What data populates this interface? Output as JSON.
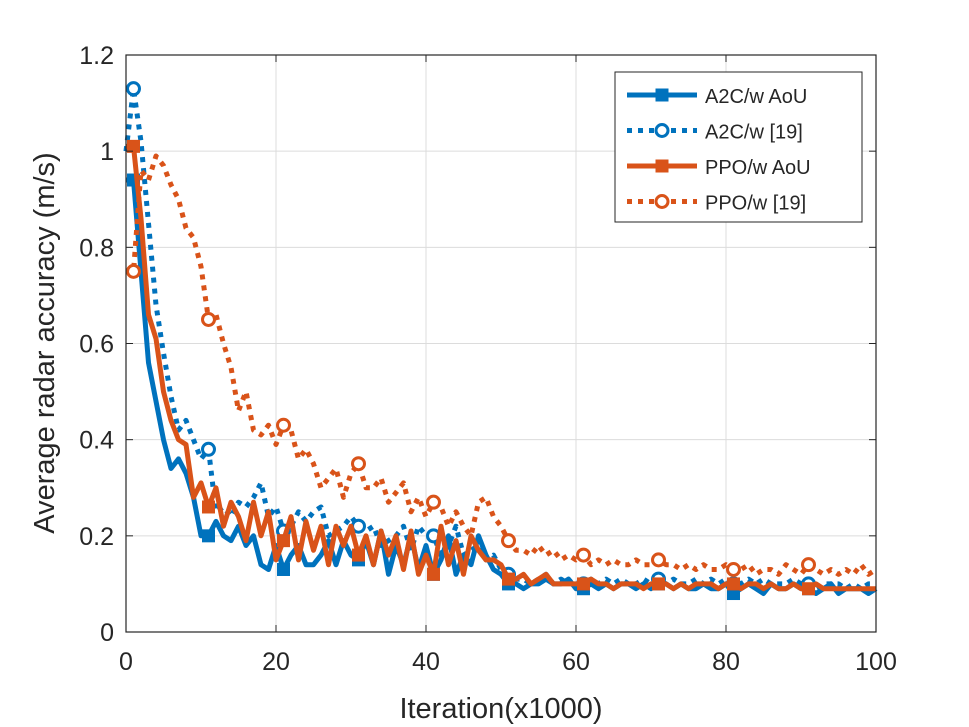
{
  "chart_data": {
    "type": "line",
    "title": "",
    "xlabel": "Iteration(x1000)",
    "ylabel": "Average radar accuracy (m/s)",
    "xlim": [
      0,
      100
    ],
    "ylim": [
      0,
      1.2
    ],
    "xticks": [
      0,
      20,
      40,
      60,
      80,
      100
    ],
    "xtick_labels": [
      "0",
      "20",
      "40",
      "60",
      "80",
      "100"
    ],
    "yticks": [
      0,
      0.2,
      0.4,
      0.6,
      0.8,
      1.0,
      1.2
    ],
    "ytick_labels": [
      "0",
      "0.2",
      "0.4",
      "0.6",
      "0.8",
      "1",
      "1.2"
    ],
    "grid": true,
    "legend_position": "top-right",
    "series": [
      {
        "name": "A2C/w AoU",
        "color": "#0072BD",
        "line_style": "solid",
        "marker": "square",
        "marker_every": 10,
        "x": [
          0,
          1,
          2,
          3,
          4,
          5,
          6,
          7,
          8,
          9,
          10,
          11,
          12,
          13,
          14,
          15,
          16,
          17,
          18,
          19,
          20,
          21,
          22,
          23,
          24,
          25,
          26,
          27,
          28,
          29,
          30,
          31,
          32,
          33,
          34,
          35,
          36,
          37,
          38,
          39,
          40,
          41,
          42,
          43,
          44,
          45,
          46,
          47,
          48,
          49,
          50,
          51,
          52,
          53,
          54,
          55,
          56,
          57,
          58,
          59,
          60,
          61,
          62,
          63,
          64,
          65,
          66,
          67,
          68,
          69,
          70,
          71,
          72,
          73,
          74,
          75,
          76,
          77,
          78,
          79,
          80,
          81,
          82,
          83,
          84,
          85,
          86,
          87,
          88,
          89,
          90,
          91,
          92,
          93,
          94,
          95,
          96,
          97,
          98,
          99,
          100
        ],
        "y": [
          0.94,
          0.94,
          0.75,
          0.56,
          0.48,
          0.4,
          0.34,
          0.36,
          0.33,
          0.28,
          0.2,
          0.2,
          0.23,
          0.2,
          0.19,
          0.22,
          0.18,
          0.2,
          0.14,
          0.13,
          0.18,
          0.13,
          0.16,
          0.18,
          0.14,
          0.14,
          0.16,
          0.19,
          0.14,
          0.19,
          0.16,
          0.15,
          0.19,
          0.14,
          0.21,
          0.12,
          0.18,
          0.14,
          0.2,
          0.13,
          0.18,
          0.12,
          0.15,
          0.2,
          0.12,
          0.16,
          0.14,
          0.2,
          0.16,
          0.13,
          0.12,
          0.1,
          0.1,
          0.09,
          0.1,
          0.1,
          0.11,
          0.1,
          0.1,
          0.11,
          0.09,
          0.09,
          0.1,
          0.09,
          0.1,
          0.09,
          0.1,
          0.1,
          0.09,
          0.1,
          0.09,
          0.1,
          0.1,
          0.09,
          0.1,
          0.09,
          0.09,
          0.1,
          0.09,
          0.09,
          0.1,
          0.08,
          0.09,
          0.1,
          0.09,
          0.08,
          0.1,
          0.09,
          0.09,
          0.1,
          0.09,
          0.09,
          0.08,
          0.09,
          0.1,
          0.08,
          0.09,
          0.09,
          0.09,
          0.08,
          0.09
        ]
      },
      {
        "name": "A2C/w [19]",
        "color": "#0072BD",
        "line_style": "dotted",
        "marker": "circle",
        "marker_every": 10,
        "x": [
          0,
          1,
          2,
          3,
          4,
          5,
          6,
          7,
          8,
          9,
          10,
          11,
          12,
          13,
          14,
          15,
          16,
          17,
          18,
          19,
          20,
          21,
          22,
          23,
          24,
          25,
          26,
          27,
          28,
          29,
          30,
          31,
          32,
          33,
          34,
          35,
          36,
          37,
          38,
          39,
          40,
          41,
          42,
          43,
          44,
          45,
          46,
          47,
          48,
          49,
          50,
          51,
          52,
          53,
          54,
          55,
          56,
          57,
          58,
          59,
          60,
          61,
          62,
          63,
          64,
          65,
          66,
          67,
          68,
          69,
          70,
          71,
          72,
          73,
          74,
          75,
          76,
          77,
          78,
          79,
          80,
          81,
          82,
          83,
          84,
          85,
          86,
          87,
          88,
          89,
          90,
          91,
          92,
          93,
          94,
          95,
          96,
          97,
          98,
          99,
          100
        ],
        "y": [
          1.0,
          1.13,
          1.02,
          0.85,
          0.68,
          0.58,
          0.49,
          0.42,
          0.44,
          0.4,
          0.36,
          0.38,
          0.25,
          0.26,
          0.24,
          0.27,
          0.26,
          0.28,
          0.31,
          0.24,
          0.26,
          0.21,
          0.22,
          0.25,
          0.23,
          0.25,
          0.26,
          0.2,
          0.21,
          0.22,
          0.24,
          0.22,
          0.21,
          0.22,
          0.18,
          0.19,
          0.2,
          0.22,
          0.17,
          0.22,
          0.2,
          0.2,
          0.16,
          0.18,
          0.22,
          0.16,
          0.17,
          0.18,
          0.15,
          0.16,
          0.13,
          0.12,
          0.11,
          0.11,
          0.1,
          0.11,
          0.12,
          0.1,
          0.11,
          0.1,
          0.11,
          0.1,
          0.11,
          0.1,
          0.11,
          0.1,
          0.11,
          0.1,
          0.1,
          0.11,
          0.1,
          0.11,
          0.1,
          0.11,
          0.1,
          0.1,
          0.11,
          0.1,
          0.11,
          0.1,
          0.11,
          0.1,
          0.1,
          0.11,
          0.1,
          0.11,
          0.1,
          0.1,
          0.1,
          0.11,
          0.1,
          0.1,
          0.09,
          0.1,
          0.1,
          0.1,
          0.09,
          0.1,
          0.09,
          0.1,
          0.1
        ]
      },
      {
        "name": "PPO/w AoU",
        "color": "#D95319",
        "line_style": "solid",
        "marker": "square",
        "marker_every": 10,
        "x": [
          0,
          1,
          2,
          3,
          4,
          5,
          6,
          7,
          8,
          9,
          10,
          11,
          12,
          13,
          14,
          15,
          16,
          17,
          18,
          19,
          20,
          21,
          22,
          23,
          24,
          25,
          26,
          27,
          28,
          29,
          30,
          31,
          32,
          33,
          34,
          35,
          36,
          37,
          38,
          39,
          40,
          41,
          42,
          43,
          44,
          45,
          46,
          47,
          48,
          49,
          50,
          51,
          52,
          53,
          54,
          55,
          56,
          57,
          58,
          59,
          60,
          61,
          62,
          63,
          64,
          65,
          66,
          67,
          68,
          69,
          70,
          71,
          72,
          73,
          74,
          75,
          76,
          77,
          78,
          79,
          80,
          81,
          82,
          83,
          84,
          85,
          86,
          87,
          88,
          89,
          90,
          91,
          92,
          93,
          94,
          95,
          96,
          97,
          98,
          99,
          100
        ],
        "y": [
          1.01,
          1.01,
          0.86,
          0.66,
          0.61,
          0.5,
          0.44,
          0.4,
          0.39,
          0.28,
          0.31,
          0.26,
          0.3,
          0.22,
          0.27,
          0.24,
          0.19,
          0.27,
          0.2,
          0.25,
          0.15,
          0.19,
          0.24,
          0.15,
          0.23,
          0.17,
          0.22,
          0.14,
          0.22,
          0.18,
          0.22,
          0.16,
          0.2,
          0.14,
          0.21,
          0.16,
          0.2,
          0.13,
          0.21,
          0.12,
          0.16,
          0.12,
          0.22,
          0.14,
          0.19,
          0.12,
          0.2,
          0.17,
          0.15,
          0.15,
          0.14,
          0.11,
          0.11,
          0.12,
          0.1,
          0.11,
          0.12,
          0.1,
          0.1,
          0.1,
          0.1,
          0.1,
          0.11,
          0.1,
          0.1,
          0.09,
          0.1,
          0.1,
          0.1,
          0.09,
          0.1,
          0.1,
          0.1,
          0.09,
          0.1,
          0.09,
          0.1,
          0.1,
          0.1,
          0.09,
          0.1,
          0.1,
          0.09,
          0.1,
          0.1,
          0.09,
          0.1,
          0.09,
          0.09,
          0.1,
          0.09,
          0.09,
          0.1,
          0.09,
          0.09,
          0.09,
          0.09,
          0.09,
          0.09,
          0.09,
          0.09
        ]
      },
      {
        "name": "PPO/w [19]",
        "color": "#D95319",
        "line_style": "dotted",
        "marker": "circle",
        "marker_every": 10,
        "x": [
          0,
          1,
          2,
          3,
          4,
          5,
          6,
          7,
          8,
          9,
          10,
          11,
          12,
          13,
          14,
          15,
          16,
          17,
          18,
          19,
          20,
          21,
          22,
          23,
          24,
          25,
          26,
          27,
          28,
          29,
          30,
          31,
          32,
          33,
          34,
          35,
          36,
          37,
          38,
          39,
          40,
          41,
          42,
          43,
          44,
          45,
          46,
          47,
          48,
          49,
          50,
          51,
          52,
          53,
          54,
          55,
          56,
          57,
          58,
          59,
          60,
          61,
          62,
          63,
          64,
          65,
          66,
          67,
          68,
          69,
          70,
          71,
          72,
          73,
          74,
          75,
          76,
          77,
          78,
          79,
          80,
          81,
          82,
          83,
          84,
          85,
          86,
          87,
          88,
          89,
          90,
          91,
          92,
          93,
          94,
          95,
          96,
          97,
          98,
          99,
          100
        ],
        "y": [
          0.75,
          0.75,
          0.96,
          0.94,
          0.99,
          0.97,
          0.93,
          0.9,
          0.84,
          0.82,
          0.76,
          0.65,
          0.66,
          0.6,
          0.55,
          0.46,
          0.5,
          0.42,
          0.41,
          0.43,
          0.39,
          0.43,
          0.42,
          0.36,
          0.38,
          0.35,
          0.3,
          0.32,
          0.34,
          0.28,
          0.33,
          0.35,
          0.3,
          0.3,
          0.32,
          0.27,
          0.29,
          0.31,
          0.25,
          0.28,
          0.24,
          0.27,
          0.26,
          0.22,
          0.25,
          0.22,
          0.2,
          0.27,
          0.28,
          0.24,
          0.22,
          0.19,
          0.17,
          0.17,
          0.16,
          0.18,
          0.16,
          0.17,
          0.15,
          0.16,
          0.15,
          0.16,
          0.14,
          0.15,
          0.14,
          0.15,
          0.14,
          0.14,
          0.15,
          0.14,
          0.14,
          0.15,
          0.14,
          0.14,
          0.13,
          0.14,
          0.13,
          0.14,
          0.13,
          0.13,
          0.14,
          0.13,
          0.13,
          0.14,
          0.12,
          0.13,
          0.13,
          0.12,
          0.14,
          0.13,
          0.12,
          0.14,
          0.13,
          0.12,
          0.13,
          0.12,
          0.13,
          0.12,
          0.14,
          0.12,
          0.13
        ]
      }
    ]
  }
}
